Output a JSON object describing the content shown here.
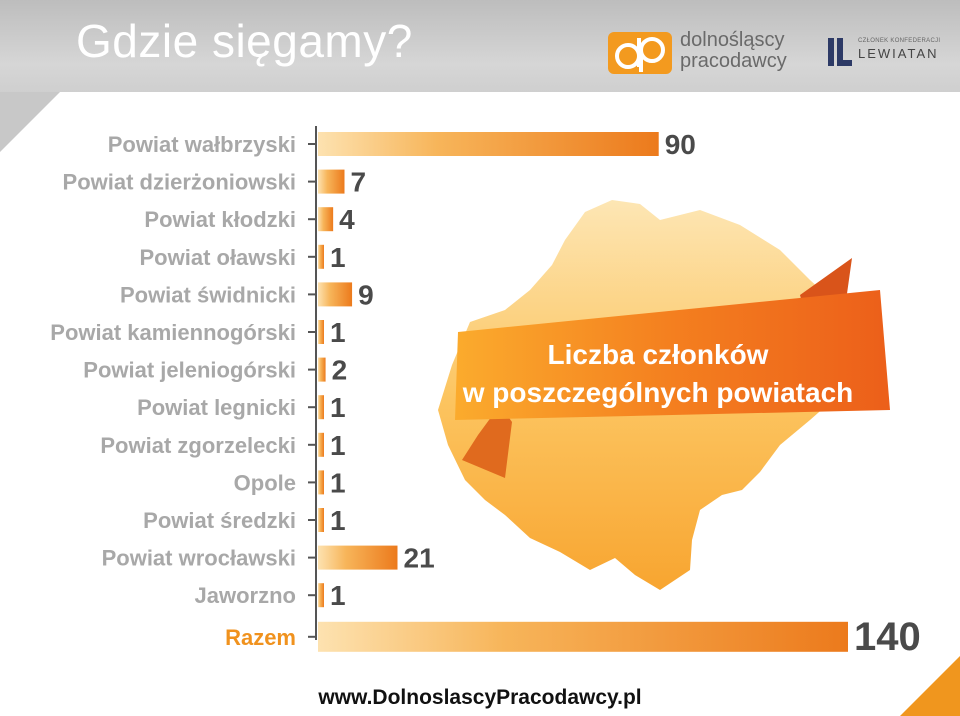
{
  "header": {
    "title": "Gdzie sięgamy?"
  },
  "logo": {
    "line1": "dolnośląscy",
    "line2": "pracodawcy",
    "lewiatan_small": "CZŁONEK KONFEDERACJI",
    "lewiatan_name": "LEWIATAN"
  },
  "colors": {
    "bar_start": "#f7b55a",
    "bar_end": "#ec7a1c",
    "map": "#fbb23a",
    "banner": "#f37a1f",
    "label": "#a8a8a8",
    "total_label": "#f0921e"
  },
  "chart_data": {
    "type": "bar",
    "orientation": "horizontal",
    "title": "Liczba członków w poszczególnych powiatach",
    "title_lines": [
      "Liczba członków",
      "w poszczególnych powiatach"
    ],
    "categories": [
      "Powiat wałbrzyski",
      "Powiat dzierżoniowski",
      "Powiat kłodzki",
      "Powiat oławski",
      "Powiat świdnicki",
      "Powiat kamiennogórski",
      "Powiat jeleniogórski",
      "Powiat legnicki",
      "Powiat zgorzelecki",
      "Opole",
      "Powiat średzki",
      "Powiat wrocławski",
      "Jaworzno",
      "Razem"
    ],
    "values": [
      90,
      7,
      4,
      1,
      9,
      1,
      2,
      1,
      1,
      1,
      1,
      21,
      1,
      140
    ],
    "xlim": [
      0,
      140
    ],
    "grid": false,
    "legend": "none"
  },
  "footer": {
    "url": "www.DolnoslascyPracodawcy.pl"
  }
}
